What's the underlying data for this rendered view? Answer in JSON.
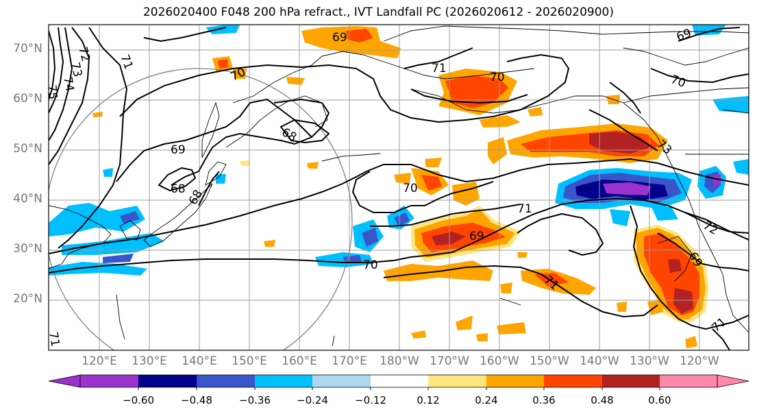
{
  "title": "2026020400 F048 200 hPa refract., IVT Landfall PC (2026020612 - 2026020900)",
  "map": {
    "lat_labels": [
      "70°N",
      "60°N",
      "50°N",
      "40°N",
      "30°N",
      "20°N"
    ],
    "lon_labels": [
      "120°E",
      "130°E",
      "140°E",
      "150°E",
      "160°E",
      "170°E",
      "180°W",
      "170°W",
      "160°W",
      "150°W",
      "140°W",
      "130°W",
      "120°W"
    ],
    "contour_labels": [
      "71",
      "72",
      "73",
      "74",
      "75",
      "70",
      "69",
      "68",
      "68",
      "68",
      "69",
      "70",
      "69",
      "70",
      "71",
      "71",
      "71",
      "72",
      "69",
      "70",
      "71",
      "69",
      "73",
      "70",
      "71"
    ]
  },
  "colorbar": {
    "tick_labels": [
      "−0.60",
      "−0.48",
      "−0.36",
      "−0.24",
      "−0.12",
      "0.12",
      "0.24",
      "0.36",
      "0.48",
      "0.60"
    ],
    "colors": [
      "#9933cc",
      "#00008b",
      "#3a55c9",
      "#00bfff",
      "#add8f0",
      "#ffffff",
      "#ffe680",
      "#ffa500",
      "#ff4500",
      "#b22222",
      "#ff88aa"
    ]
  }
}
